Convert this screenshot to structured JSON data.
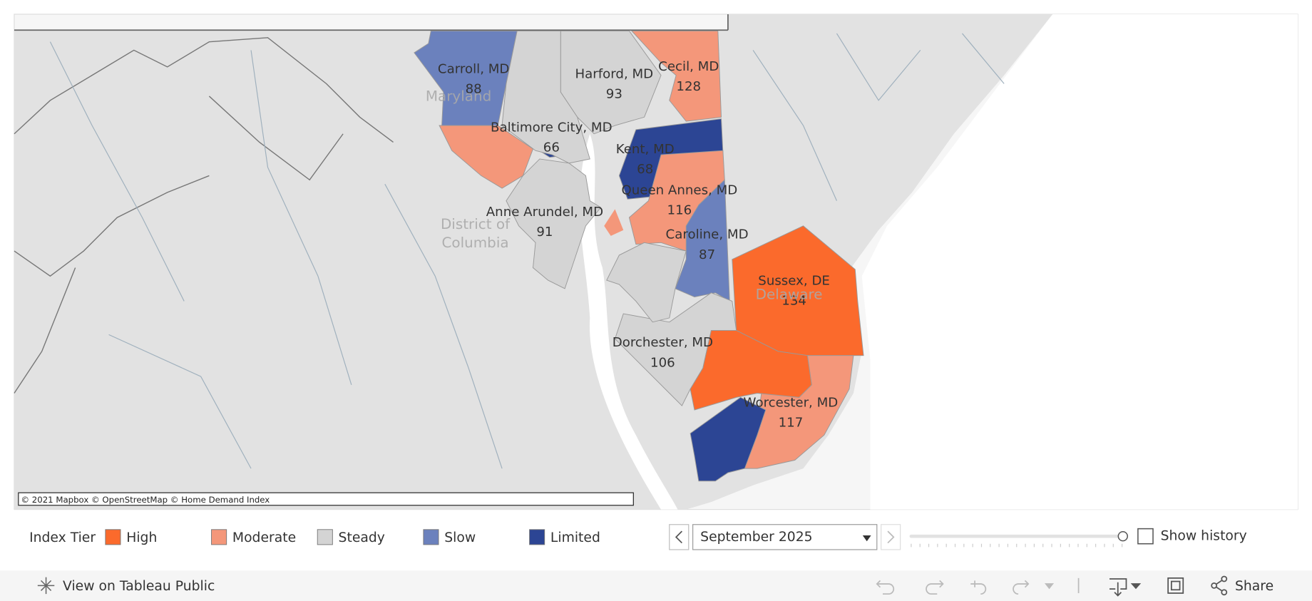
{
  "map": {
    "regions": [
      {
        "name": "Carroll, MD",
        "value": 88,
        "tier": "Slow"
      },
      {
        "name": "Harford, MD",
        "value": 93,
        "tier": "Steady"
      },
      {
        "name": "Cecil, MD",
        "value": 128,
        "tier": "Moderate"
      },
      {
        "name": "Baltimore City, MD",
        "value": 66,
        "tier": "Limited"
      },
      {
        "name": "Kent, MD",
        "value": 68,
        "tier": "Limited"
      },
      {
        "name": "Queen Annes, MD",
        "value": 116,
        "tier": "Moderate"
      },
      {
        "name": "Anne Arundel, MD",
        "value": 91,
        "tier": "Steady"
      },
      {
        "name": "Caroline, MD",
        "value": 87,
        "tier": "Slow"
      },
      {
        "name": "Sussex, DE",
        "value": 134,
        "tier": "High"
      },
      {
        "name": "Dorchester, MD",
        "value": 106,
        "tier": "Steady"
      },
      {
        "name": "Worcester, MD",
        "value": 117,
        "tier": "Moderate"
      }
    ],
    "basemap_labels": {
      "maryland": "Maryland",
      "dc": [
        "District of",
        "Columbia"
      ],
      "delaware": "Delaware"
    },
    "attribution": "© 2021 Mapbox © OpenStreetMap  © Home Demand Index"
  },
  "legend": {
    "title": "Index Tier",
    "items": [
      {
        "label": "High",
        "color": "#fb6a2c"
      },
      {
        "label": "Moderate",
        "color": "#f4977a"
      },
      {
        "label": "Steady",
        "color": "#d4d4d4"
      },
      {
        "label": "Slow",
        "color": "#6b81bd"
      },
      {
        "label": "Limited",
        "color": "#2c4594"
      }
    ]
  },
  "controls": {
    "date": "September 2025",
    "show_history": "Show history"
  },
  "toolbar": {
    "view": "View on Tableau Public",
    "share": "Share"
  }
}
